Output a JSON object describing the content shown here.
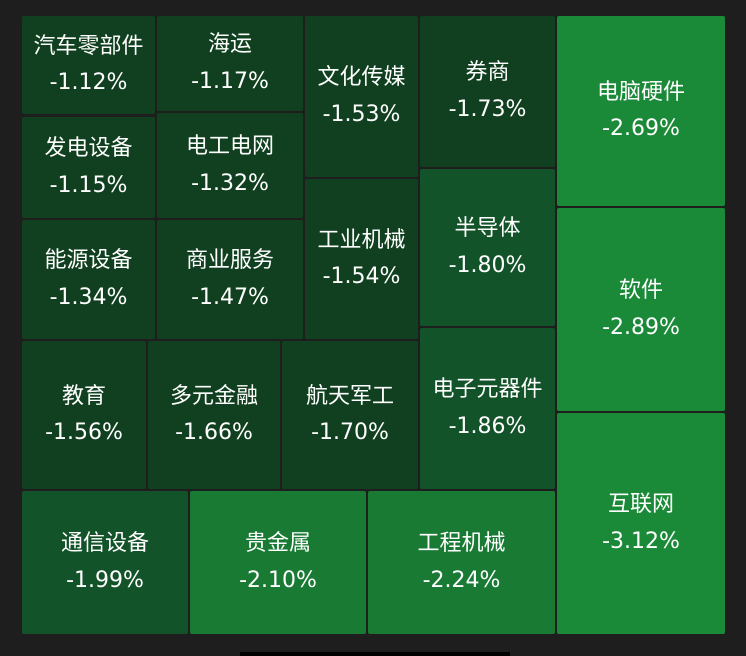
{
  "chart_data": {
    "type": "treemap",
    "unit": "%",
    "colors": {
      "background": "#1e1e1e",
      "deep_green": "#10401f",
      "mid_green": "#13532a",
      "bright_green": "#187a33",
      "brightest_green": "#1a8a38"
    },
    "items": [
      {
        "name": "汽车零部件",
        "label": "-1.12%",
        "value": -1.12
      },
      {
        "name": "海运",
        "label": "-1.17%",
        "value": -1.17
      },
      {
        "name": "文化传媒",
        "label": "-1.53%",
        "value": -1.53
      },
      {
        "name": "券商",
        "label": "-1.73%",
        "value": -1.73
      },
      {
        "name": "电脑硬件",
        "label": "-2.69%",
        "value": -2.69
      },
      {
        "name": "发电设备",
        "label": "-1.15%",
        "value": -1.15
      },
      {
        "name": "电工电网",
        "label": "-1.32%",
        "value": -1.32
      },
      {
        "name": "能源设备",
        "label": "-1.34%",
        "value": -1.34
      },
      {
        "name": "商业服务",
        "label": "-1.47%",
        "value": -1.47
      },
      {
        "name": "工业机械",
        "label": "-1.54%",
        "value": -1.54
      },
      {
        "name": "半导体",
        "label": "-1.80%",
        "value": -1.8
      },
      {
        "name": "软件",
        "label": "-2.89%",
        "value": -2.89
      },
      {
        "name": "教育",
        "label": "-1.56%",
        "value": -1.56
      },
      {
        "name": "多元金融",
        "label": "-1.66%",
        "value": -1.66
      },
      {
        "name": "航天军工",
        "label": "-1.70%",
        "value": -1.7
      },
      {
        "name": "电子元器件",
        "label": "-1.86%",
        "value": -1.86
      },
      {
        "name": "互联网",
        "label": "-3.12%",
        "value": -3.12
      },
      {
        "name": "通信设备",
        "label": "-1.99%",
        "value": -1.99
      },
      {
        "name": "贵金属",
        "label": "-2.10%",
        "value": -2.1
      },
      {
        "name": "工程机械",
        "label": "-2.24%",
        "value": -2.24
      }
    ]
  }
}
